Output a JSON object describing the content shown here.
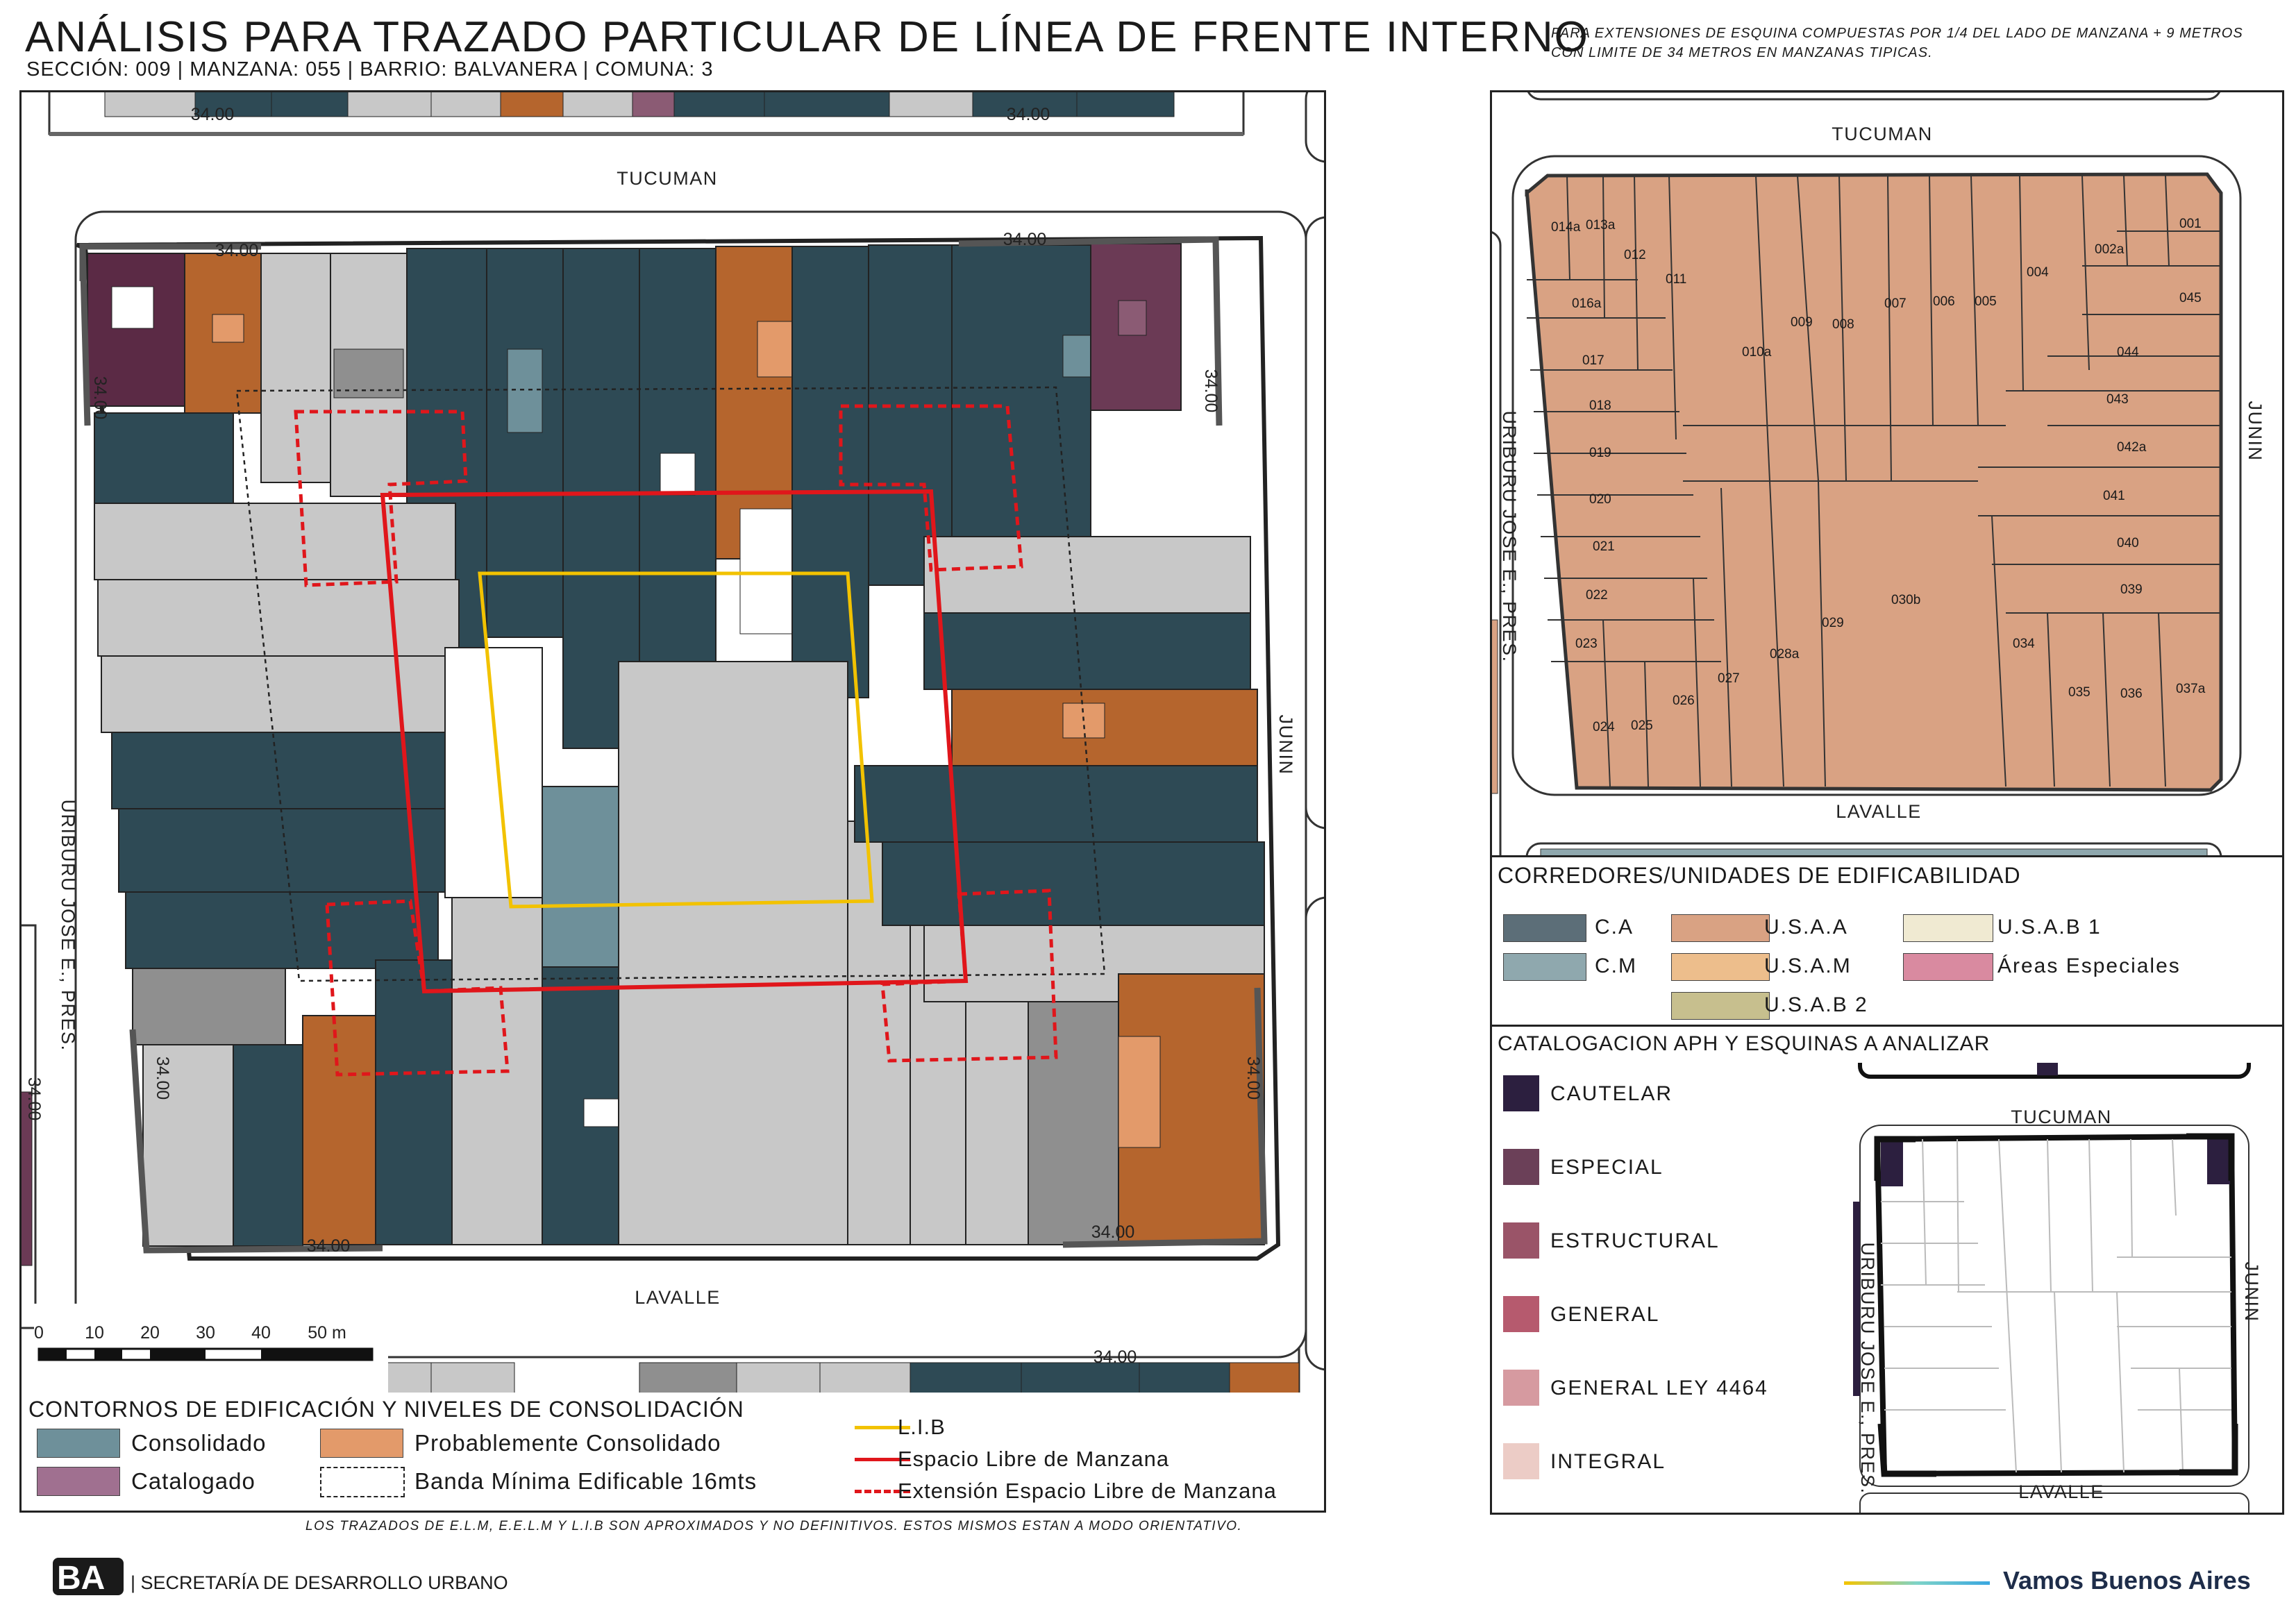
{
  "header": {
    "title": "ANÁLISIS PARA TRAZADO PARTICULAR DE LÍNEA DE FRENTE INTERNO",
    "subtitle": "SECCIÓN: 009 |  MANZANA: 055 | BARRIO: BALVANERA | COMUNA: 3",
    "note": "PARA EXTENSIONES DE ESQUINA COMPUESTAS POR 1/4 DEL LADO DE MANZANA + 9 METROS CON LIMITE DE 34 METROS EN MANZANAS TIPICAS."
  },
  "main_map": {
    "streets": {
      "north": "TUCUMAN",
      "south": "LAVALLE",
      "east": "JUNIN",
      "west": "URIBURU JOSE E., PRES."
    },
    "dimension_label": "34.00",
    "scale_labels": [
      "0",
      "10",
      "20",
      "30",
      "40",
      "50 m"
    ]
  },
  "legend_contornos": {
    "title": "CONTORNOS DE EDIFICACIÓN Y NIVELES DE CONSOLIDACIÓN",
    "items": [
      {
        "label": "Consolidado",
        "color": "#6e909a"
      },
      {
        "label": "Probablemente Consolidado",
        "color": "#e39a6a"
      },
      {
        "label": "Catalogado",
        "color": "#a07090"
      },
      {
        "label": "Banda Mínima Edificable 16mts",
        "color": "#ffffff"
      }
    ],
    "lines": [
      {
        "label": "L.I.B",
        "color": "#f2c200"
      },
      {
        "label": "Espacio Libre de Manzana",
        "color": "#e0161b"
      },
      {
        "label": "Extensión Espacio Libre de Manzana",
        "color": "#e0161b"
      }
    ]
  },
  "inset_map": {
    "streets": {
      "north": "TUCUMAN",
      "south": "LAVALLE",
      "east": "JUNIN",
      "west": "URIBURU JOSE E., PRES."
    },
    "lot_labels": [
      "014a",
      "013a",
      "012",
      "011",
      "016a",
      "017",
      "018",
      "019",
      "020",
      "021",
      "022",
      "023",
      "024",
      "025",
      "026",
      "027",
      "028a",
      "010a",
      "009",
      "008",
      "007",
      "006",
      "005",
      "004",
      "002a",
      "001",
      "045",
      "044",
      "043",
      "042a",
      "041",
      "040",
      "039",
      "034",
      "035",
      "036",
      "037a",
      "030b",
      "029"
    ]
  },
  "legend_corredores": {
    "title": "CORREDORES/UNIDADES DE EDIFICABILIDAD",
    "items": [
      {
        "label": "C.A",
        "color": "#5c6e78"
      },
      {
        "label": "U.S.A.A",
        "color": "#d9a283"
      },
      {
        "label": "U.S.A.B 1",
        "color": "#f0ead2"
      },
      {
        "label": "C.M",
        "color": "#8fa8ae"
      },
      {
        "label": "U.S.A.M",
        "color": "#edbe8c"
      },
      {
        "label": "Áreas Especiales",
        "color": "#d98aa0"
      },
      {
        "label": "U.S.A.B 2",
        "color": "#c7bf8e"
      }
    ]
  },
  "legend_catalogacion": {
    "title": "CATALOGACION APH Y ESQUINAS A ANALIZAR",
    "items": [
      {
        "label": "CAUTELAR",
        "color": "#2c1f3f"
      },
      {
        "label": "ESPECIAL",
        "color": "#6b4058"
      },
      {
        "label": "ESTRUCTURAL",
        "color": "#9a5468"
      },
      {
        "label": "GENERAL",
        "color": "#b65a6e"
      },
      {
        "label": "GENERAL LEY 4464",
        "color": "#d69aa0"
      },
      {
        "label": "INTEGRAL",
        "color": "#ecccc6"
      }
    ],
    "mini_map_streets": {
      "north": "TUCUMAN",
      "south": "LAVALLE",
      "east": "JUNIN",
      "west": "URIBURU JOSE E., PRES."
    }
  },
  "footer": {
    "note": "LOS TRAZADOS DE E.L.M, E.E.L.M Y L.I.B SON APROXIMADOS Y NO DEFINITIVOS. ESTOS MISMOS ESTAN A MODO ORIENTATIVO.",
    "org": "| SECRETARÍA DE DESARROLLO URBANO",
    "logo_text": "BA",
    "brand": "Vamos Buenos Aires"
  }
}
